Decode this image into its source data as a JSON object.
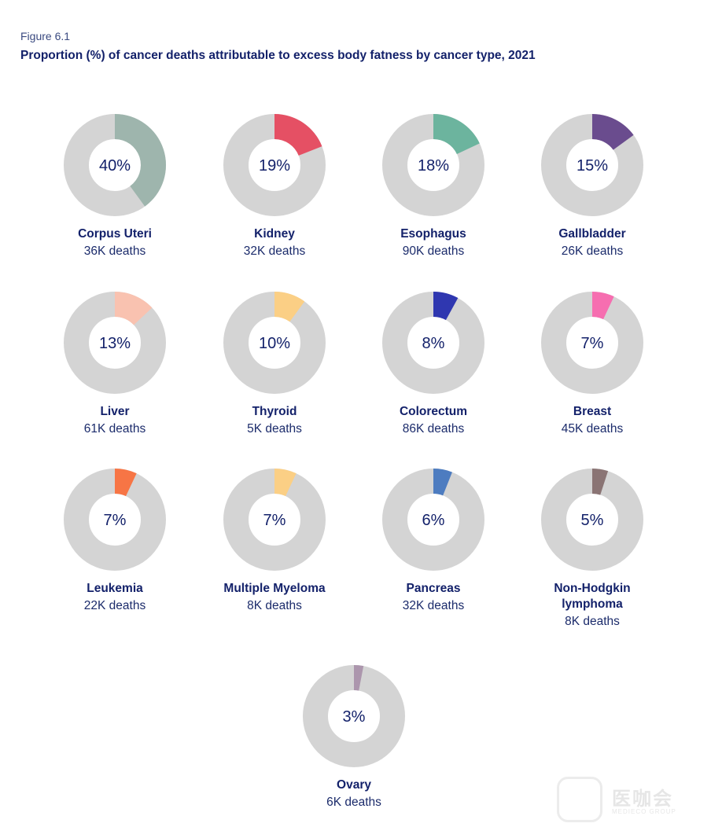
{
  "figure": {
    "label": "Figure 6.1",
    "title": "Proportion (%) of cancer deaths attributable to excess body fatness by cancer type, 2021"
  },
  "chart_data": {
    "type": "pie",
    "subtype": "donut",
    "remainder_color": "#d4d4d4",
    "items": [
      {
        "name": "Corpus Uteri",
        "percent": 40,
        "label": "40%",
        "deaths": "36K deaths",
        "color": "#9eb5ad"
      },
      {
        "name": "Kidney",
        "percent": 19,
        "label": "19%",
        "deaths": "32K deaths",
        "color": "#e55064"
      },
      {
        "name": "Esophagus",
        "percent": 18,
        "label": "18%",
        "deaths": "90K deaths",
        "color": "#6cb49e"
      },
      {
        "name": "Gallbladder",
        "percent": 15,
        "label": "15%",
        "deaths": "26K deaths",
        "color": "#6a4c8e"
      },
      {
        "name": "Liver",
        "percent": 13,
        "label": "13%",
        "deaths": "61K deaths",
        "color": "#f9c2b0"
      },
      {
        "name": "Thyroid",
        "percent": 10,
        "label": "10%",
        "deaths": "5K deaths",
        "color": "#fbcf85"
      },
      {
        "name": "Colorectum",
        "percent": 8,
        "label": "8%",
        "deaths": "86K deaths",
        "color": "#2f37b0"
      },
      {
        "name": "Breast",
        "percent": 7,
        "label": "7%",
        "deaths": "45K deaths",
        "color": "#f66eb0"
      },
      {
        "name": "Leukemia",
        "percent": 7,
        "label": "7%",
        "deaths": "22K deaths",
        "color": "#f77545"
      },
      {
        "name": "Multiple Myeloma",
        "percent": 7,
        "label": "7%",
        "deaths": "8K deaths",
        "color": "#fbcf85"
      },
      {
        "name": "Pancreas",
        "percent": 6,
        "label": "6%",
        "deaths": "32K deaths",
        "color": "#4d7cc0"
      },
      {
        "name": "Non-Hodgkin lymphoma",
        "name_lines": [
          "Non-Hodgkin",
          "lymphoma"
        ],
        "percent": 5,
        "label": "5%",
        "deaths": "8K deaths",
        "color": "#8a7474"
      },
      {
        "name": "Ovary",
        "percent": 3,
        "label": "3%",
        "deaths": "6K deaths",
        "color": "#ac96ad"
      }
    ]
  },
  "watermark": {
    "text": "医咖会",
    "sub": "MEDIECO GROUP"
  }
}
